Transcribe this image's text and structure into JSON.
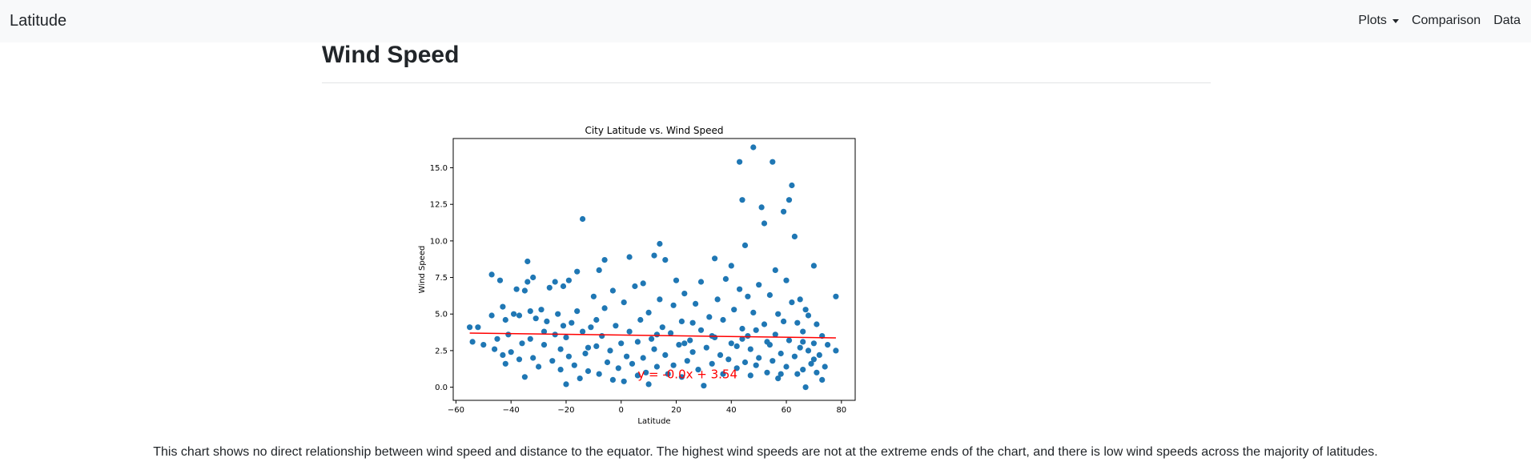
{
  "navbar": {
    "brand": "Latitude",
    "items": [
      {
        "label": "Plots",
        "dropdown": true
      },
      {
        "label": "Comparison"
      },
      {
        "label": "Data"
      }
    ]
  },
  "page": {
    "title": "Wind Speed",
    "caption": "This chart shows no direct relationship between wind speed and distance to the equator. The highest wind speeds are not at the extreme ends of the chart, and there is low wind speeds across the majority of latitudes."
  },
  "colors": {
    "marker": "#1f77b4",
    "regression": "#ff0000",
    "navbar_bg": "#f8f9fa"
  },
  "chart_data": {
    "type": "scatter",
    "title": "City Latitude vs. Wind Speed",
    "xlabel": "Latitude",
    "ylabel": "Wind Speed",
    "xlim": [
      -61,
      85
    ],
    "ylim": [
      -0.9,
      17.0
    ],
    "xticks": [
      -60,
      -40,
      -20,
      0,
      20,
      40,
      60,
      80
    ],
    "yticks": [
      0.0,
      2.5,
      5.0,
      7.5,
      10.0,
      12.5,
      15.0
    ],
    "grid": false,
    "annotation": "y = -0.0x + 3.54",
    "regression": {
      "x": [
        -55,
        78
      ],
      "y": [
        3.7,
        3.37
      ]
    },
    "points": [
      [
        -55,
        4.1
      ],
      [
        -54,
        3.1
      ],
      [
        -52,
        4.1
      ],
      [
        -47,
        7.7
      ],
      [
        -47,
        4.9
      ],
      [
        -46,
        2.6
      ],
      [
        -45,
        3.3
      ],
      [
        -44,
        7.3
      ],
      [
        -43,
        5.5
      ],
      [
        -42,
        4.6
      ],
      [
        -42,
        1.6
      ],
      [
        -41,
        3.6
      ],
      [
        -40,
        2.4
      ],
      [
        -39,
        5.0
      ],
      [
        -38,
        6.7
      ],
      [
        -37,
        1.9
      ],
      [
        -36,
        3.0
      ],
      [
        -35,
        6.6
      ],
      [
        -35,
        0.7
      ],
      [
        -34,
        8.6
      ],
      [
        -34,
        7.2
      ],
      [
        -33,
        5.2
      ],
      [
        -33,
        3.3
      ],
      [
        -32,
        2.0
      ],
      [
        -32,
        7.5
      ],
      [
        -31,
        4.7
      ],
      [
        -30,
        1.4
      ],
      [
        -29,
        5.3
      ],
      [
        -28,
        2.9
      ],
      [
        -27,
        4.5
      ],
      [
        -26,
        6.8
      ],
      [
        -25,
        1.8
      ],
      [
        -24,
        7.2
      ],
      [
        -24,
        3.6
      ],
      [
        -23,
        5.0
      ],
      [
        -22,
        2.6
      ],
      [
        -22,
        1.2
      ],
      [
        -21,
        6.9
      ],
      [
        -20,
        0.2
      ],
      [
        -20,
        3.4
      ],
      [
        -19,
        7.3
      ],
      [
        -19,
        2.1
      ],
      [
        -18,
        4.4
      ],
      [
        -17,
        1.5
      ],
      [
        -16,
        5.2
      ],
      [
        -16,
        7.9
      ],
      [
        -15,
        0.6
      ],
      [
        -14,
        3.8
      ],
      [
        -14,
        11.5
      ],
      [
        -13,
        2.3
      ],
      [
        -12,
        1.1
      ],
      [
        -11,
        4.1
      ],
      [
        -10,
        6.2
      ],
      [
        -9,
        2.8
      ],
      [
        -8,
        8.0
      ],
      [
        -8,
        0.9
      ],
      [
        -7,
        3.5
      ],
      [
        -6,
        5.4
      ],
      [
        -6,
        8.7
      ],
      [
        -5,
        1.7
      ],
      [
        -4,
        2.5
      ],
      [
        -3,
        6.6
      ],
      [
        -3,
        0.5
      ],
      [
        -2,
        4.2
      ],
      [
        -1,
        1.3
      ],
      [
        0,
        3.0
      ],
      [
        1,
        5.8
      ],
      [
        1,
        0.4
      ],
      [
        2,
        2.1
      ],
      [
        3,
        8.9
      ],
      [
        4,
        1.6
      ],
      [
        5,
        6.9
      ],
      [
        6,
        3.1
      ],
      [
        6,
        0.8
      ],
      [
        7,
        4.6
      ],
      [
        8,
        2.0
      ],
      [
        8,
        7.1
      ],
      [
        9,
        1.0
      ],
      [
        10,
        5.1
      ],
      [
        10,
        0.2
      ],
      [
        11,
        3.3
      ],
      [
        12,
        9.0
      ],
      [
        12,
        2.6
      ],
      [
        13,
        1.4
      ],
      [
        14,
        6.0
      ],
      [
        14,
        9.8
      ],
      [
        15,
        4.1
      ],
      [
        16,
        8.7
      ],
      [
        16,
        2.2
      ],
      [
        17,
        0.9
      ],
      [
        18,
        3.7
      ],
      [
        19,
        5.6
      ],
      [
        19,
        1.5
      ],
      [
        20,
        7.3
      ],
      [
        21,
        2.9
      ],
      [
        22,
        4.5
      ],
      [
        22,
        0.7
      ],
      [
        23,
        6.4
      ],
      [
        24,
        1.8
      ],
      [
        25,
        3.2
      ],
      [
        26,
        4.4
      ],
      [
        26,
        2.4
      ],
      [
        27,
        5.7
      ],
      [
        28,
        1.2
      ],
      [
        29,
        7.2
      ],
      [
        29,
        3.9
      ],
      [
        30,
        0.1
      ],
      [
        31,
        2.7
      ],
      [
        32,
        4.8
      ],
      [
        33,
        1.6
      ],
      [
        34,
        8.8
      ],
      [
        34,
        3.4
      ],
      [
        35,
        6.0
      ],
      [
        36,
        2.2
      ],
      [
        37,
        0.9
      ],
      [
        37,
        4.6
      ],
      [
        38,
        7.4
      ],
      [
        39,
        1.9
      ],
      [
        40,
        3.0
      ],
      [
        40,
        8.3
      ],
      [
        41,
        5.3
      ],
      [
        42,
        1.3
      ],
      [
        42,
        2.8
      ],
      [
        43,
        6.7
      ],
      [
        43,
        15.4
      ],
      [
        44,
        12.8
      ],
      [
        44,
        4.0
      ],
      [
        45,
        9.7
      ],
      [
        45,
        1.7
      ],
      [
        46,
        3.5
      ],
      [
        46,
        6.2
      ],
      [
        47,
        0.8
      ],
      [
        47,
        2.6
      ],
      [
        48,
        5.1
      ],
      [
        48,
        16.4
      ],
      [
        49,
        1.5
      ],
      [
        49,
        3.9
      ],
      [
        50,
        7.0
      ],
      [
        50,
        2.0
      ],
      [
        51,
        12.3
      ],
      [
        52,
        11.2
      ],
      [
        52,
        4.3
      ],
      [
        53,
        1.0
      ],
      [
        54,
        2.9
      ],
      [
        54,
        6.3
      ],
      [
        55,
        15.4
      ],
      [
        55,
        1.8
      ],
      [
        56,
        3.6
      ],
      [
        56,
        8.0
      ],
      [
        57,
        5.0
      ],
      [
        57,
        0.6
      ],
      [
        58,
        2.3
      ],
      [
        59,
        4.5
      ],
      [
        59,
        12.0
      ],
      [
        60,
        7.3
      ],
      [
        60,
        1.4
      ],
      [
        61,
        12.8
      ],
      [
        61,
        3.2
      ],
      [
        62,
        13.8
      ],
      [
        62,
        5.8
      ],
      [
        63,
        2.1
      ],
      [
        63,
        10.3
      ],
      [
        64,
        0.9
      ],
      [
        64,
        4.4
      ],
      [
        65,
        6.0
      ],
      [
        65,
        2.7
      ],
      [
        66,
        1.2
      ],
      [
        66,
        3.8
      ],
      [
        67,
        5.3
      ],
      [
        67,
        0.0
      ],
      [
        68,
        2.5
      ],
      [
        68,
        4.9
      ],
      [
        69,
        1.6
      ],
      [
        70,
        8.3
      ],
      [
        70,
        3.0
      ],
      [
        71,
        1.0
      ],
      [
        71,
        4.3
      ],
      [
        72,
        2.2
      ],
      [
        73,
        0.5
      ],
      [
        73,
        3.5
      ],
      [
        74,
        1.4
      ],
      [
        75,
        2.9
      ],
      [
        78,
        6.2
      ],
      [
        78,
        2.5
      ],
      [
        -50,
        2.9
      ],
      [
        -43,
        2.2
      ],
      [
        -37,
        4.9
      ],
      [
        -28,
        3.8
      ],
      [
        -21,
        4.2
      ],
      [
        -9,
        4.6
      ],
      [
        3,
        3.8
      ],
      [
        13,
        3.6
      ],
      [
        23,
        3.0
      ],
      [
        33,
        3.5
      ],
      [
        44,
        3.3
      ],
      [
        53,
        3.1
      ],
      [
        58,
        0.9
      ],
      [
        66,
        3.1
      ],
      [
        70,
        1.9
      ],
      [
        -12,
        2.7
      ]
    ]
  }
}
